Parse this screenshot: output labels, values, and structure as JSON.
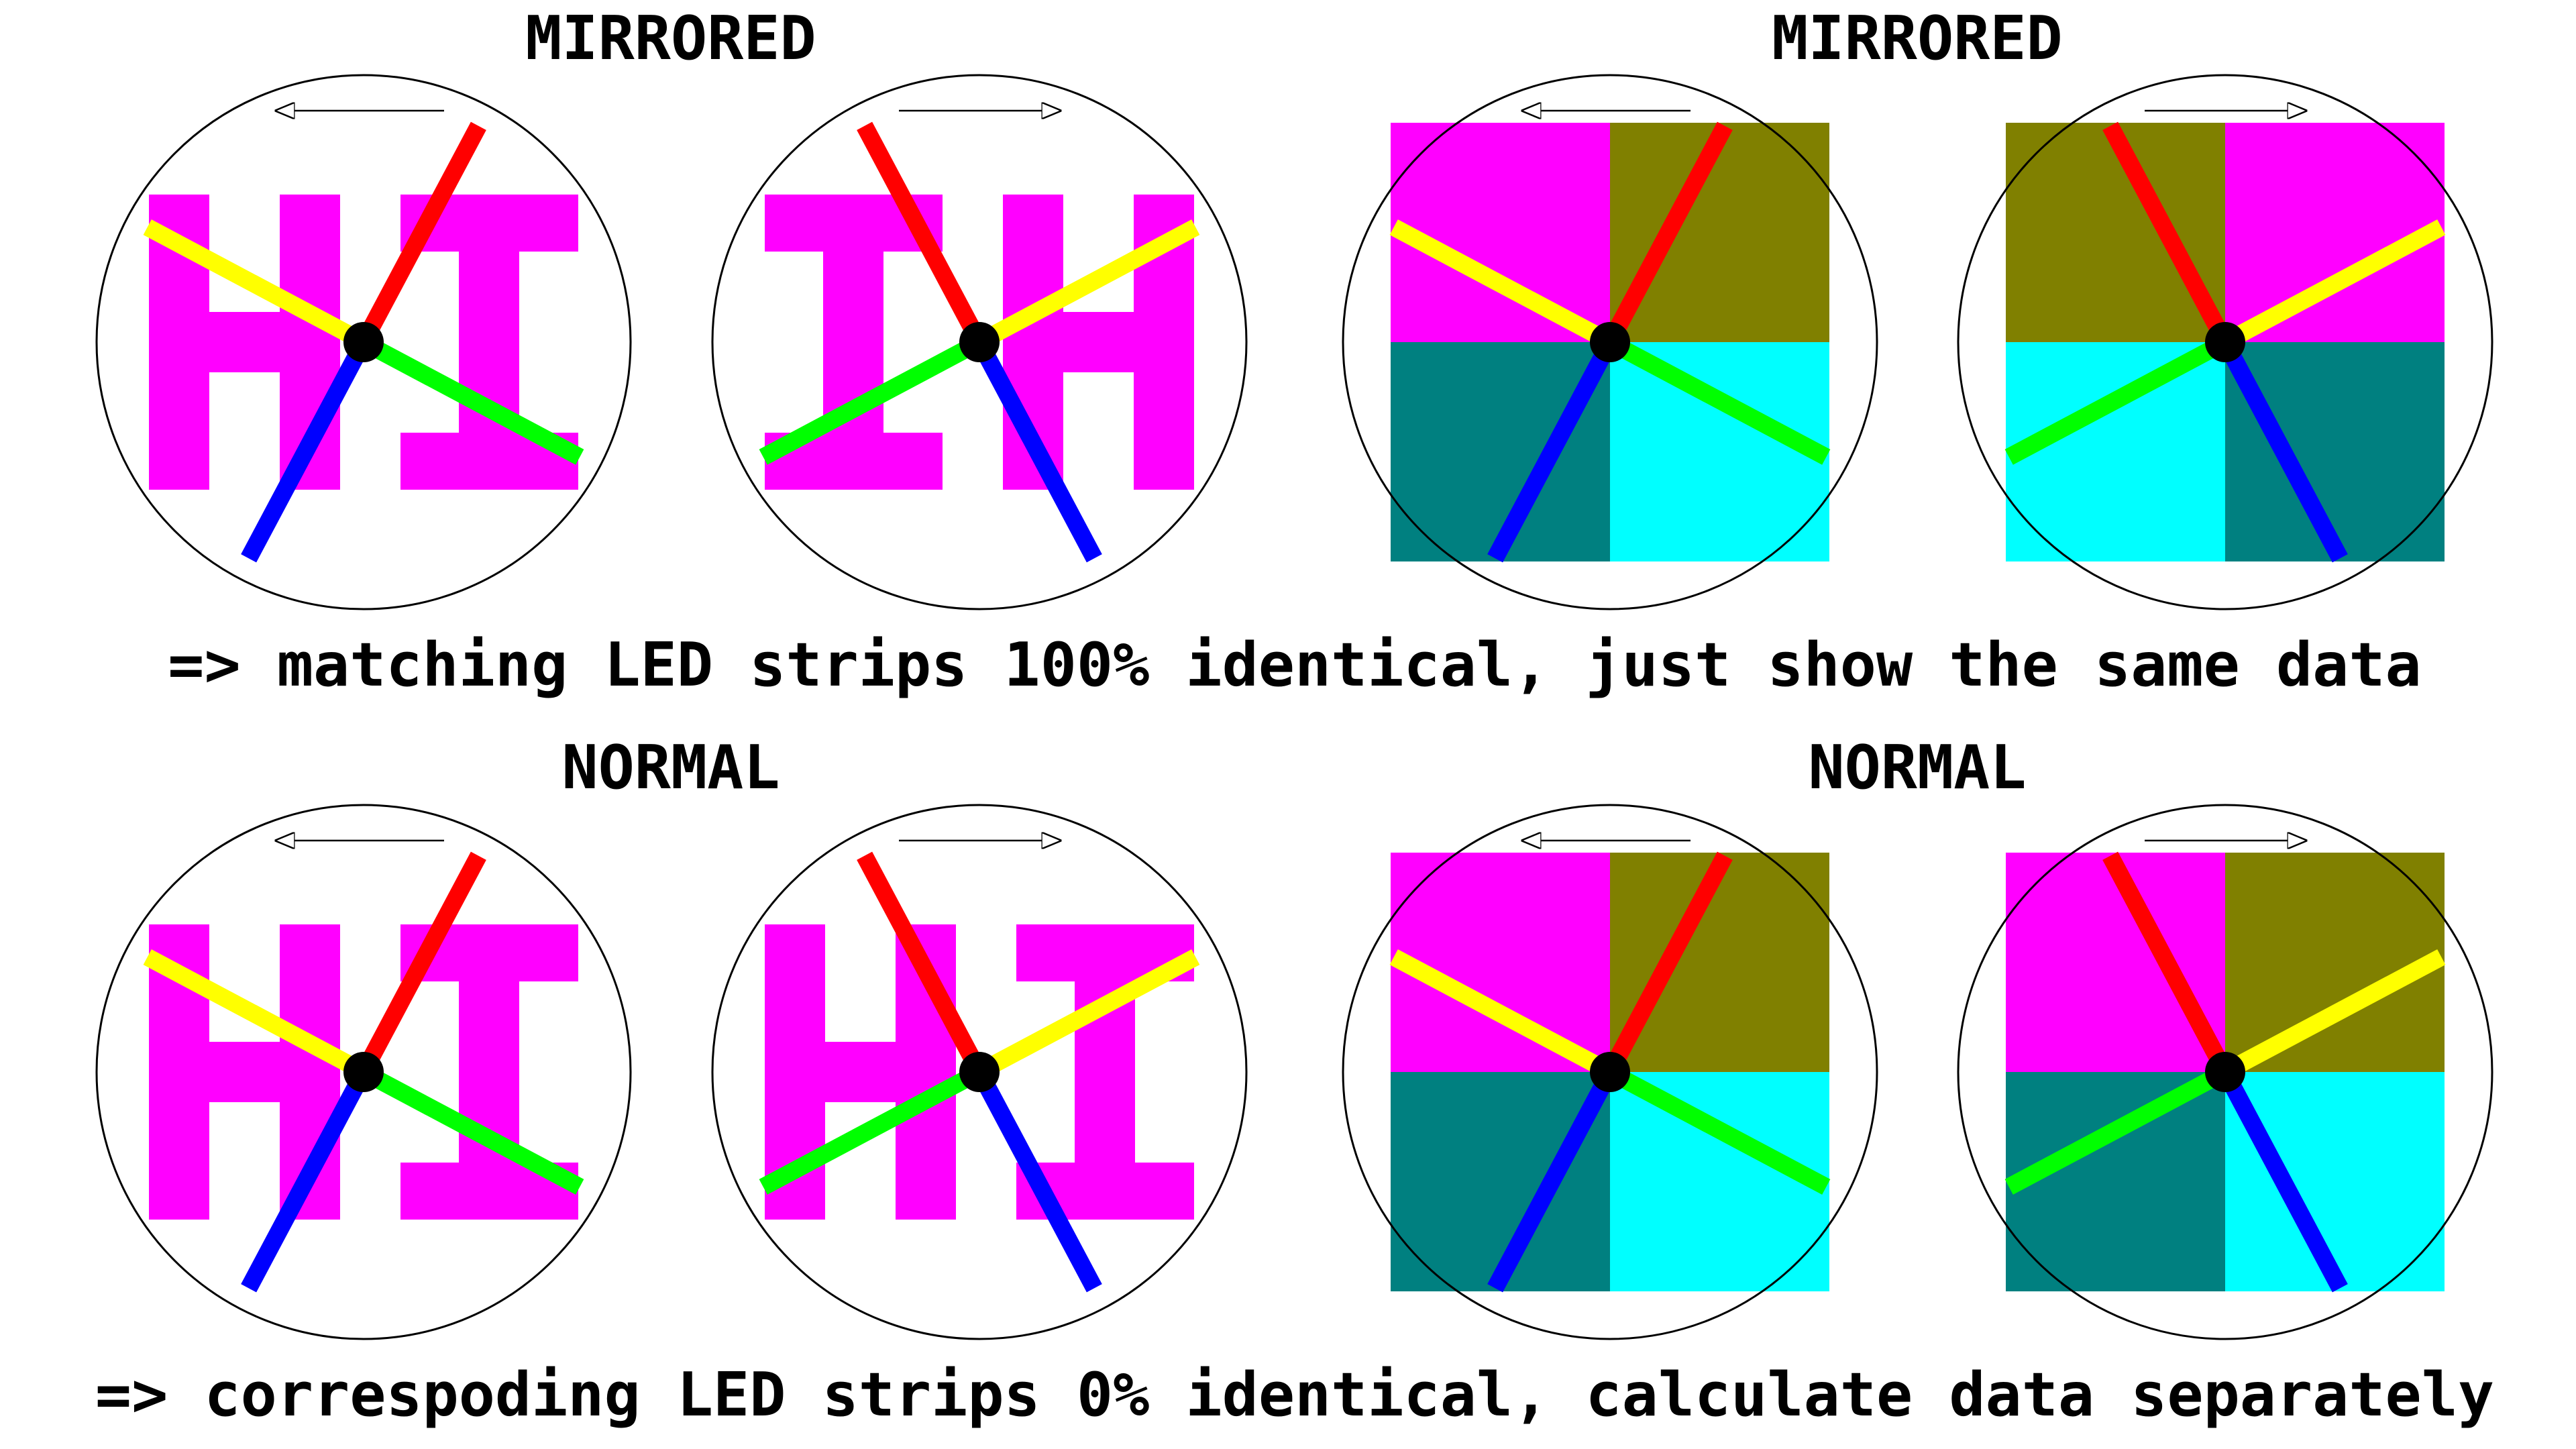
{
  "sections": [
    {
      "title": "MIRRORED",
      "caption": "=> matching LED strips 100% identical, just show the same data"
    },
    {
      "title": "MIRRORED"
    },
    {
      "title": "NORMAL",
      "caption": "=> correspoding LED strips 0% identical, calculate data separately"
    },
    {
      "title": "NORMAL"
    }
  ],
  "colors": {
    "letters": "#ff00ff",
    "magenta": "#ff00ff",
    "olive": "#808000",
    "teal": "#008080",
    "cyan": "#00ffff",
    "strip_red": "#ff0000",
    "strip_yellow": "#ffff00",
    "strip_green": "#00ff00",
    "strip_blue": "#0000ff"
  },
  "panels": [
    {
      "type": "letters",
      "text": "HI",
      "arrow": "left"
    },
    {
      "type": "letters",
      "text": "IH",
      "arrow": "right"
    },
    {
      "type": "quadrants",
      "order": [
        "magenta",
        "olive",
        "teal",
        "cyan"
      ],
      "arrow": "left"
    },
    {
      "type": "quadrants",
      "order": [
        "olive",
        "magenta",
        "cyan",
        "teal"
      ],
      "arrow": "right"
    },
    {
      "type": "letters",
      "text": "HI",
      "arrow": "left"
    },
    {
      "type": "letters",
      "text": "HI",
      "arrow": "right"
    },
    {
      "type": "quadrants",
      "order": [
        "magenta",
        "olive",
        "teal",
        "cyan"
      ],
      "arrow": "left"
    },
    {
      "type": "quadrants",
      "order": [
        "magenta",
        "olive",
        "teal",
        "cyan"
      ],
      "arrow": "right"
    }
  ]
}
